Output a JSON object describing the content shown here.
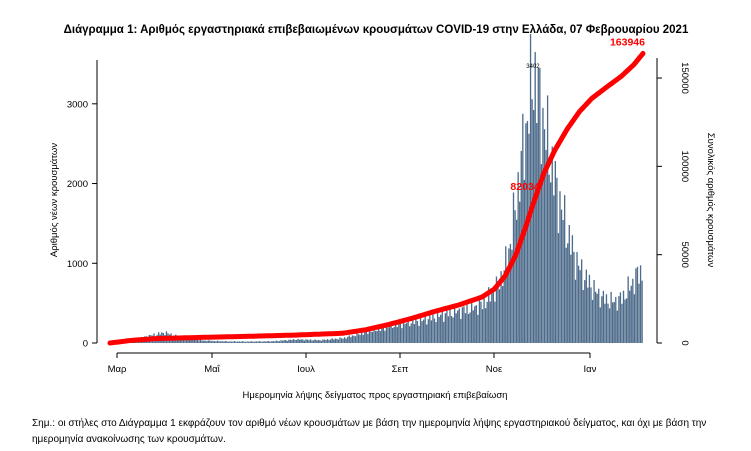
{
  "chart_data": {
    "type": "bar",
    "title": "Διάγραμμα 1: Αριθμός εργαστηριακά επιβεβαιωμένων κρουσμάτων COVID-19 στην Ελλάδα, 07 Φεβρουαρίου 2021",
    "xlabel": "Ημερομηνία λήψης δείγματος προς εργαστηριακή επιβεβαίωση",
    "ylabel": "Αριθμός νέων κρουσμάτων",
    "y2label": "Συνολικός αριθμός κρουσμάτων",
    "ylim": [
      0,
      3700
    ],
    "y2lim": [
      0,
      167000
    ],
    "yticks": [
      "0",
      "1000",
      "2000",
      "3000"
    ],
    "y2ticks": [
      "0",
      "50000",
      "100000",
      "150000"
    ],
    "xticks": [
      "Μαρ",
      "Μαΐ",
      "Ιουλ",
      "Σεπ",
      "Νοε",
      "Ιαν"
    ],
    "days_count": 344,
    "bar_color": "#4d6b8a",
    "line_color": "#ff0000",
    "bar_points": [
      [
        0,
        5
      ],
      [
        15,
        40
      ],
      [
        25,
        90
      ],
      [
        35,
        130
      ],
      [
        45,
        70
      ],
      [
        60,
        30
      ],
      [
        75,
        20
      ],
      [
        90,
        18
      ],
      [
        105,
        22
      ],
      [
        120,
        45
      ],
      [
        135,
        35
      ],
      [
        150,
        60
      ],
      [
        160,
        110
      ],
      [
        170,
        160
      ],
      [
        180,
        210
      ],
      [
        190,
        250
      ],
      [
        200,
        280
      ],
      [
        210,
        330
      ],
      [
        220,
        380
      ],
      [
        230,
        420
      ],
      [
        240,
        480
      ],
      [
        248,
        650
      ],
      [
        254,
        900
      ],
      [
        258,
        1250
      ],
      [
        262,
        1800
      ],
      [
        266,
        2400
      ],
      [
        270,
        2950
      ],
      [
        273,
        3400
      ],
      [
        276,
        3100
      ],
      [
        280,
        2700
      ],
      [
        284,
        2300
      ],
      [
        288,
        1900
      ],
      [
        292,
        1600
      ],
      [
        296,
        1300
      ],
      [
        300,
        1050
      ],
      [
        305,
        850
      ],
      [
        310,
        720
      ],
      [
        315,
        600
      ],
      [
        320,
        540
      ],
      [
        325,
        520
      ],
      [
        330,
        560
      ],
      [
        335,
        700
      ],
      [
        340,
        850
      ],
      [
        343,
        900
      ]
    ],
    "cum_points": [
      [
        0,
        0
      ],
      [
        14,
        1500
      ],
      [
        30,
        2500
      ],
      [
        60,
        3200
      ],
      [
        90,
        3800
      ],
      [
        120,
        4500
      ],
      [
        150,
        5500
      ],
      [
        165,
        7500
      ],
      [
        180,
        10500
      ],
      [
        195,
        14000
      ],
      [
        210,
        18000
      ],
      [
        225,
        21500
      ],
      [
        240,
        26000
      ],
      [
        248,
        30500
      ],
      [
        255,
        38000
      ],
      [
        262,
        50000
      ],
      [
        268,
        65000
      ],
      [
        274,
        81000
      ],
      [
        280,
        96000
      ],
      [
        287,
        109000
      ],
      [
        295,
        121000
      ],
      [
        303,
        131000
      ],
      [
        311,
        138500
      ],
      [
        320,
        144500
      ],
      [
        330,
        151000
      ],
      [
        338,
        157500
      ],
      [
        344,
        163946
      ]
    ],
    "annotations": [
      {
        "text": "163946",
        "day": 344,
        "value": 163946,
        "axis": "y2",
        "color": "#ff0000"
      },
      {
        "text": "82034",
        "day": 276,
        "value": 82034,
        "axis": "y2",
        "color": "#ff0000"
      },
      {
        "text": "3402",
        "day": 273,
        "value": 3402,
        "axis": "y1",
        "color": "#000000"
      }
    ]
  },
  "note": {
    "text": "Σημ.: οι στήλες στο Διάγραμμα 1 εκφράζουν τον αριθμό νέων κρουσμάτων με βάση την ημερομηνία λήψης εργαστηριακού δείγματος, και όχι με βάση την ημερομηνία ανακοίνωσης των κρουσμάτων."
  }
}
